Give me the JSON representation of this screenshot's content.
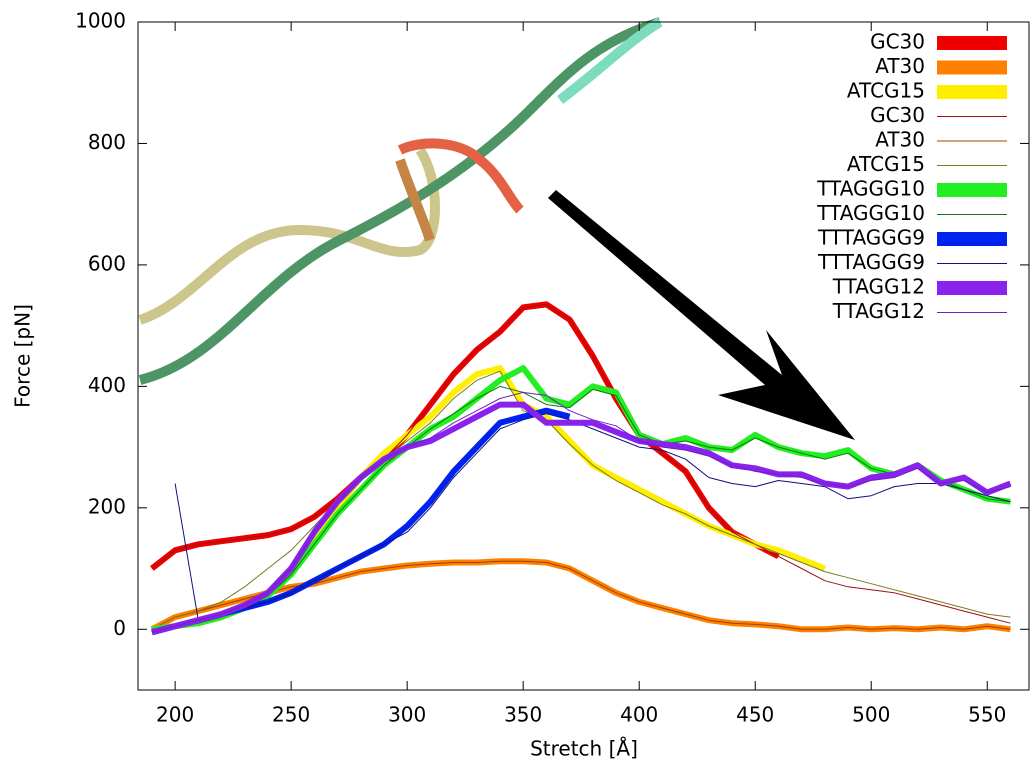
{
  "chart_data": {
    "type": "line",
    "x_label": "Stretch [Å]",
    "y_label": "Force [pN]",
    "x": [
      190,
      200,
      210,
      220,
      230,
      240,
      250,
      260,
      270,
      280,
      290,
      300,
      310,
      320,
      330,
      340,
      350,
      360,
      370,
      380,
      390,
      400,
      410,
      420,
      430,
      440,
      450,
      460,
      470,
      480,
      490,
      500,
      510,
      520,
      530,
      540,
      550,
      560
    ],
    "xlim": [
      184,
      568
    ],
    "xticks": [
      200,
      250,
      300,
      350,
      400,
      450,
      500,
      550
    ],
    "ylim": [
      -100,
      1000
    ],
    "yticks": [
      0,
      200,
      400,
      600,
      800,
      1000
    ],
    "legend": "upper right",
    "series": [
      {
        "name": "GC30",
        "color": "#ee0000",
        "linewidth": 6,
        "values": [
          100,
          130,
          140,
          145,
          150,
          155,
          165,
          185,
          215,
          250,
          280,
          320,
          370,
          420,
          460,
          490,
          530,
          535,
          510,
          450,
          380,
          320,
          290,
          260,
          200,
          160,
          140,
          120,
          null,
          null,
          null,
          null,
          null,
          null,
          null,
          null,
          null,
          null
        ]
      },
      {
        "name": "AT30",
        "color": "#ff8000",
        "linewidth": 6,
        "values": [
          0,
          20,
          30,
          40,
          50,
          60,
          70,
          75,
          85,
          95,
          100,
          105,
          108,
          110,
          110,
          112,
          112,
          110,
          100,
          80,
          60,
          45,
          35,
          25,
          15,
          10,
          8,
          5,
          0,
          0,
          3,
          0,
          2,
          0,
          3,
          0,
          5,
          0
        ]
      },
      {
        "name": "ATCG15",
        "color": "#ffee00",
        "linewidth": 6,
        "values": [
          0,
          5,
          10,
          20,
          35,
          60,
          100,
          150,
          200,
          250,
          290,
          320,
          350,
          390,
          420,
          430,
          370,
          350,
          310,
          270,
          250,
          230,
          210,
          190,
          170,
          155,
          140,
          130,
          115,
          100,
          null,
          null,
          null,
          null,
          null,
          null,
          null,
          null
        ]
      },
      {
        "name": "GC30",
        "color": "#a01010",
        "linewidth": 1,
        "values": [
          100,
          130,
          140,
          145,
          150,
          155,
          165,
          185,
          215,
          250,
          280,
          320,
          370,
          420,
          460,
          490,
          530,
          535,
          510,
          450,
          380,
          320,
          290,
          260,
          200,
          160,
          140,
          120,
          100,
          80,
          70,
          65,
          60,
          50,
          40,
          30,
          20,
          10
        ]
      },
      {
        "name": "AT30",
        "color": "#994400",
        "linewidth": 1,
        "values": [
          0,
          20,
          30,
          40,
          50,
          60,
          70,
          75,
          85,
          95,
          100,
          105,
          108,
          110,
          110,
          112,
          112,
          110,
          100,
          80,
          60,
          45,
          35,
          25,
          15,
          10,
          8,
          5,
          0,
          0,
          3,
          0,
          2,
          0,
          3,
          0,
          5,
          0
        ]
      },
      {
        "name": "ATCG15",
        "color": "#7a7a20",
        "linewidth": 1,
        "values": [
          0,
          20,
          30,
          45,
          70,
          100,
          130,
          170,
          210,
          250,
          280,
          310,
          340,
          380,
          410,
          425,
          360,
          345,
          305,
          270,
          245,
          225,
          205,
          190,
          170,
          155,
          140,
          125,
          110,
          95,
          85,
          75,
          65,
          55,
          45,
          35,
          25,
          20
        ]
      },
      {
        "name": "TTAGGG10",
        "color": "#22ee22",
        "linewidth": 6,
        "values": [
          0,
          5,
          10,
          20,
          35,
          55,
          90,
          140,
          190,
          230,
          270,
          300,
          330,
          350,
          380,
          410,
          430,
          380,
          370,
          400,
          390,
          320,
          305,
          315,
          300,
          295,
          320,
          300,
          290,
          285,
          295,
          265,
          255,
          270,
          245,
          230,
          215,
          210
        ]
      },
      {
        "name": "TTAGGG10",
        "color": "#117711",
        "linewidth": 1,
        "values": [
          0,
          5,
          10,
          20,
          35,
          55,
          90,
          140,
          190,
          230,
          270,
          300,
          330,
          355,
          380,
          400,
          390,
          370,
          365,
          395,
          385,
          320,
          305,
          310,
          300,
          295,
          315,
          300,
          290,
          280,
          290,
          265,
          255,
          265,
          245,
          230,
          215,
          210
        ]
      },
      {
        "name": "TTTAGGG9",
        "color": "#0022ee",
        "linewidth": 6,
        "values": [
          -5,
          5,
          15,
          25,
          35,
          45,
          60,
          80,
          100,
          120,
          140,
          170,
          210,
          260,
          300,
          340,
          350,
          360,
          350,
          null,
          null,
          null,
          null,
          null,
          null,
          null,
          null,
          null,
          null,
          null,
          null,
          null,
          null,
          null,
          null,
          null,
          null,
          null
        ]
      },
      {
        "name": "TTTAGGG9",
        "color": "#101080",
        "linewidth": 1,
        "values": [
          null,
          240,
          15,
          25,
          35,
          45,
          60,
          80,
          100,
          120,
          140,
          160,
          200,
          250,
          290,
          330,
          345,
          355,
          345,
          330,
          315,
          300,
          295,
          280,
          250,
          240,
          235,
          245,
          240,
          235,
          215,
          220,
          235,
          240,
          240,
          230,
          220,
          210
        ]
      },
      {
        "name": "TTAGG12",
        "color": "#8a22ee",
        "linewidth": 6,
        "values": [
          -5,
          5,
          15,
          25,
          40,
          60,
          100,
          160,
          210,
          250,
          280,
          300,
          310,
          330,
          350,
          370,
          370,
          340,
          340,
          340,
          325,
          310,
          305,
          300,
          290,
          270,
          265,
          255,
          255,
          240,
          235,
          250,
          255,
          270,
          240,
          250,
          225,
          240
        ]
      },
      {
        "name": "TTAGG12",
        "color": "#7020c0",
        "linewidth": 1,
        "values": [
          -5,
          5,
          15,
          25,
          40,
          60,
          100,
          160,
          210,
          250,
          280,
          300,
          315,
          340,
          360,
          380,
          390,
          385,
          360,
          345,
          335,
          310,
          300,
          295,
          285,
          270,
          260,
          255,
          250,
          240,
          235,
          245,
          250,
          265,
          240,
          245,
          225,
          235
        ]
      }
    ]
  }
}
